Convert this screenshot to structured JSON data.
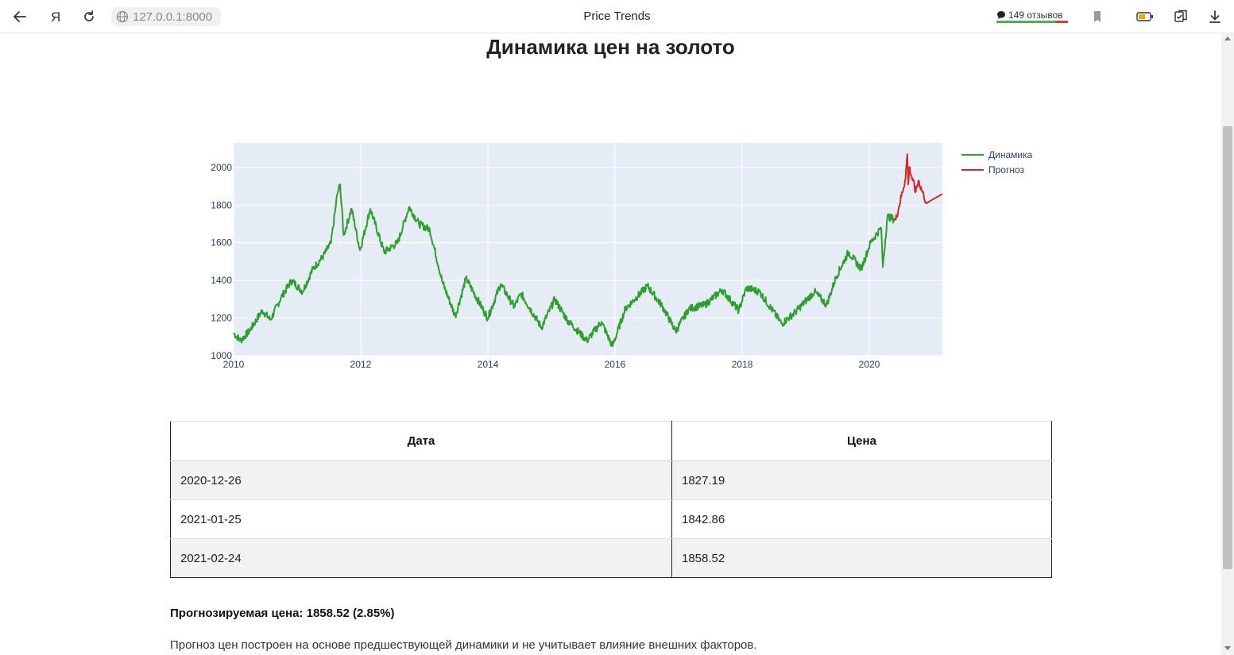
{
  "browser": {
    "url": "127.0.0.1:8000",
    "tab_title": "Price Trends",
    "reviews_label": "149 отзывов",
    "reviews_positive_share": 0.82
  },
  "page": {
    "title": "Динамика цен на золото",
    "forecast_text": "Прогнозируемая цена: 1858.52 (2.85%)",
    "disclaimer": "Прогноз цен построен на основе предшествующей динамики и не учитывает влияние внешних факторов."
  },
  "table": {
    "headers": [
      "Дата",
      "Цена"
    ],
    "rows": [
      [
        "2020-12-26",
        "1827.19"
      ],
      [
        "2021-01-25",
        "1842.86"
      ],
      [
        "2021-02-24",
        "1858.52"
      ]
    ]
  },
  "chart_data": {
    "type": "line",
    "x_ticks": [
      "2010",
      "2012",
      "2014",
      "2016",
      "2018",
      "2020"
    ],
    "y_ticks": [
      "1000",
      "1200",
      "1400",
      "1600",
      "1800",
      "2000"
    ],
    "ylim": [
      1000,
      2130
    ],
    "xlim": [
      "2010-01-01",
      "2021-02-24"
    ],
    "grid": true,
    "legend_position": "top-right",
    "series": [
      {
        "name": "Динамика",
        "color": "#2ca02c",
        "points": [
          [
            "2010-01-01",
            1120
          ],
          [
            "2010-02-10",
            1080
          ],
          [
            "2010-04-01",
            1130
          ],
          [
            "2010-06-15",
            1240
          ],
          [
            "2010-08-01",
            1190
          ],
          [
            "2010-10-01",
            1310
          ],
          [
            "2010-12-01",
            1400
          ],
          [
            "2011-02-01",
            1340
          ],
          [
            "2011-04-01",
            1460
          ],
          [
            "2011-06-01",
            1530
          ],
          [
            "2011-07-15",
            1600
          ],
          [
            "2011-08-20",
            1860
          ],
          [
            "2011-09-05",
            1910
          ],
          [
            "2011-09-25",
            1640
          ],
          [
            "2011-11-10",
            1780
          ],
          [
            "2011-12-28",
            1560
          ],
          [
            "2012-02-25",
            1780
          ],
          [
            "2012-05-15",
            1550
          ],
          [
            "2012-08-01",
            1600
          ],
          [
            "2012-10-05",
            1790
          ],
          [
            "2012-12-01",
            1700
          ],
          [
            "2013-02-01",
            1670
          ],
          [
            "2013-04-15",
            1390
          ],
          [
            "2013-06-28",
            1210
          ],
          [
            "2013-08-28",
            1410
          ],
          [
            "2013-12-31",
            1200
          ],
          [
            "2014-03-15",
            1380
          ],
          [
            "2014-06-01",
            1260
          ],
          [
            "2014-07-10",
            1330
          ],
          [
            "2014-11-05",
            1150
          ],
          [
            "2015-01-20",
            1300
          ],
          [
            "2015-04-01",
            1190
          ],
          [
            "2015-07-24",
            1080
          ],
          [
            "2015-10-15",
            1180
          ],
          [
            "2015-12-17",
            1050
          ],
          [
            "2016-03-01",
            1250
          ],
          [
            "2016-07-06",
            1370
          ],
          [
            "2016-10-01",
            1260
          ],
          [
            "2016-12-15",
            1130
          ],
          [
            "2017-03-01",
            1250
          ],
          [
            "2017-06-01",
            1270
          ],
          [
            "2017-09-08",
            1350
          ],
          [
            "2017-12-12",
            1240
          ],
          [
            "2018-01-25",
            1360
          ],
          [
            "2018-04-10",
            1340
          ],
          [
            "2018-08-16",
            1170
          ],
          [
            "2018-11-01",
            1230
          ],
          [
            "2019-02-20",
            1340
          ],
          [
            "2019-05-01",
            1270
          ],
          [
            "2019-06-25",
            1420
          ],
          [
            "2019-09-04",
            1550
          ],
          [
            "2019-11-15",
            1460
          ],
          [
            "2020-01-08",
            1600
          ],
          [
            "2020-03-09",
            1680
          ],
          [
            "2020-03-19",
            1470
          ],
          [
            "2020-04-14",
            1740
          ],
          [
            "2020-06-01",
            1720
          ]
        ]
      },
      {
        "name": "Прогноз",
        "color": "#d62728",
        "points": [
          [
            "2020-06-01",
            1720
          ],
          [
            "2020-07-27",
            1940
          ],
          [
            "2020-08-06",
            2070
          ],
          [
            "2020-08-12",
            1910
          ],
          [
            "2020-08-18",
            2000
          ],
          [
            "2020-09-24",
            1870
          ],
          [
            "2020-10-10",
            1930
          ],
          [
            "2020-11-09",
            1850
          ],
          [
            "2020-11-25",
            1810
          ],
          [
            "2020-12-26",
            1827.19
          ],
          [
            "2021-01-25",
            1842.86
          ],
          [
            "2021-02-24",
            1858.52
          ]
        ]
      }
    ]
  },
  "icons": {
    "back": "back-arrow-icon",
    "yandex": "yandex-logo-icon",
    "reload": "reload-icon",
    "globe": "globe-icon",
    "bookmark": "bookmark-icon",
    "battery": "battery-icon",
    "extensions": "extensions-icon",
    "download": "download-icon"
  }
}
